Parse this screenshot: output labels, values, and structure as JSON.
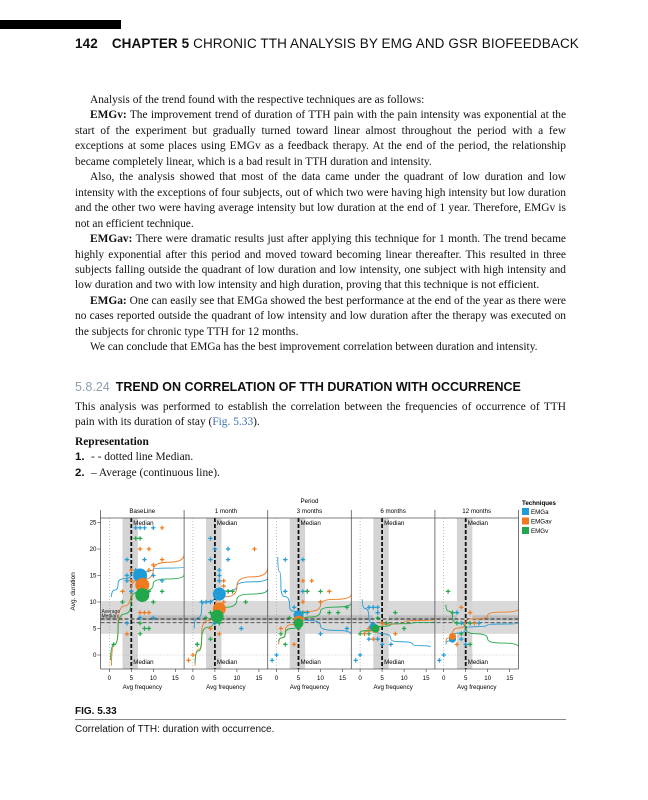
{
  "header": {
    "page_number": "142",
    "chapter": "CHAPTER 5",
    "chapter_title": "CHRONIC TTH ANALYSIS BY EMG AND GSR BIOFEEDBACK"
  },
  "body": {
    "intro": "Analysis of the trend found with the respective techniques are as follows:",
    "emgv_label": "EMGv:",
    "emgv_text": " The improvement trend of duration of TTH pain with the pain intensity was exponential at the start of the experiment but gradually turned toward linear almost throughout the period with a few exceptions at some places using EMGv as a feedback therapy. At the end of the period, the relationship became completely linear, which is a bad result in TTH duration and intensity.",
    "also_text": "Also, the analysis showed that most of the data came under the quadrant of low duration and low intensity with the exceptions of four subjects, out of which two were having high intensity but low duration and the other two were having average intensity but low duration at the end of 1 year. Therefore, EMGv is not an efficient technique.",
    "emgav_label": "EMGav:",
    "emgav_text": " There were dramatic results just after applying this technique for 1 month. The trend became highly exponential after this period and moved toward becoming linear thereafter. This resulted in three subjects falling outside the quadrant of low duration and low intensity, one subject with high intensity and low duration and two with low intensity and high duration, proving that this technique is not efficient.",
    "emga_label": "EMGa:",
    "emga_text": " One can easily see that EMGa showed the best performance at the end of the year as there were no cases reported outside the quadrant of low intensity and low duration after the therapy was executed on the subjects for chronic type TTH for 12 months.",
    "conclusion": "We can conclude that EMGa has the best improvement correlation between duration and intensity."
  },
  "section": {
    "number": "5.8.24",
    "title": "TREND ON CORRELATION OF TTH DURATION WITH OCCURRENCE"
  },
  "section_text_before": "This analysis was performed to establish the correlation between the frequencies of occurrence of TTH pain with its duration of stay (",
  "section_link": "Fig. 5.33",
  "section_text_after": ").",
  "representation": {
    "heading": "Representation",
    "items": [
      {
        "num": "1.",
        "text": "- - dotted line Median."
      },
      {
        "num": "2.",
        "text": "– Average (continuous line)."
      }
    ]
  },
  "figure": {
    "label": "FIG. 5.33",
    "caption": "Correlation of TTH: duration with occurrence."
  },
  "chart_data": {
    "type": "scatter",
    "title": "Period",
    "ylabel": "Avg. duration",
    "xlabel": "Avg frequency",
    "xlim": [
      -2,
      17
    ],
    "ylim": [
      -2.5,
      26
    ],
    "xticks": [
      0,
      5,
      10,
      15
    ],
    "yticks": [
      0,
      5,
      10,
      15,
      20,
      25
    ],
    "median_label": "Median",
    "hline_labels": [
      "Average",
      "Median"
    ],
    "vertical_median": 5,
    "vertical_band": [
      3,
      6.5
    ],
    "horizontal_average": 6.8,
    "horizontal_median": 6.1,
    "horizontal_band": [
      4,
      10.2
    ],
    "horizontal_inner_band": [
      6.5,
      7.5
    ],
    "legend": {
      "title": "Techniques",
      "position": "top-right"
    },
    "series": [
      {
        "name": "EMGa",
        "color": "#1f9bd7"
      },
      {
        "name": "EMGav",
        "color": "#f07a1e"
      },
      {
        "name": "EMGv",
        "color": "#22a74a"
      }
    ],
    "panels": [
      {
        "name": "BaseLine",
        "points": {
          "EMGa": [
            [
              4,
              18
            ],
            [
              4,
              15
            ],
            [
              4,
              14
            ],
            [
              5,
              12
            ],
            [
              6,
              24
            ],
            [
              7,
              24
            ],
            [
              8,
              24
            ],
            [
              10,
              24
            ],
            [
              8,
              18
            ],
            [
              10,
              15
            ],
            [
              12,
              14
            ],
            [
              4,
              6
            ],
            [
              7,
              7
            ],
            [
              10,
              7
            ],
            [
              6,
              16
            ]
          ],
          "EMGav": [
            [
              3,
              12
            ],
            [
              5,
              16
            ],
            [
              7,
              20
            ],
            [
              9,
              20
            ],
            [
              10,
              17
            ],
            [
              12,
              18
            ],
            [
              12,
              24
            ],
            [
              9,
              16
            ],
            [
              4,
              4
            ],
            [
              7,
              8
            ],
            [
              8,
              8
            ],
            [
              9,
              8
            ],
            [
              5,
              14
            ]
          ],
          "EMGv": [
            [
              6,
              22
            ],
            [
              7,
              22
            ],
            [
              8,
              15
            ],
            [
              9,
              12
            ],
            [
              12,
              12
            ],
            [
              3,
              10
            ],
            [
              7,
              6
            ],
            [
              8,
              5
            ],
            [
              9,
              5
            ],
            [
              7,
              4
            ],
            [
              1,
              2
            ],
            [
              10,
              10
            ]
          ]
        },
        "means": {
          "EMGa": [
            7,
            15
          ],
          "EMGav": [
            7.5,
            13.2
          ],
          "EMGv": [
            7.5,
            11.3
          ]
        },
        "trends": {
          "EMGa": [
            [
              0.5,
              11
            ],
            [
              2,
              13.5
            ],
            [
              5,
              15.3
            ],
            [
              10,
              16.2
            ],
            [
              17,
              16.6
            ]
          ],
          "EMGav": [
            [
              0.5,
              -2
            ],
            [
              2,
              6
            ],
            [
              5,
              12.5
            ],
            [
              10,
              16
            ],
            [
              17,
              19
            ]
          ],
          "EMGv": [
            [
              0.3,
              -1
            ],
            [
              2,
              5
            ],
            [
              5,
              10.5
            ],
            [
              10,
              13.5
            ],
            [
              17,
              15.2
            ]
          ]
        }
      },
      {
        "name": "1 month",
        "points": {
          "EMGa": [
            [
              4,
              22
            ],
            [
              4,
              18
            ],
            [
              5,
              20
            ],
            [
              6,
              16
            ],
            [
              6,
              15
            ],
            [
              8,
              20
            ],
            [
              8,
              18
            ],
            [
              6,
              14
            ],
            [
              2,
              10
            ],
            [
              3,
              10
            ],
            [
              4,
              10
            ],
            [
              11,
              5
            ],
            [
              1,
              2
            ],
            [
              5,
              6
            ]
          ],
          "EMGav": [
            [
              7,
              13
            ],
            [
              8,
              12
            ],
            [
              7,
              14
            ],
            [
              14,
              20
            ],
            [
              4,
              5
            ],
            [
              6,
              4
            ],
            [
              -1,
              -1
            ],
            [
              0,
              0
            ],
            [
              7,
              10
            ]
          ],
          "EMGv": [
            [
              4,
              8
            ],
            [
              4,
              3
            ],
            [
              1,
              2
            ],
            [
              8,
              12
            ],
            [
              9,
              12
            ],
            [
              12,
              10
            ],
            [
              6,
              6
            ],
            [
              3,
              7
            ]
          ]
        },
        "means": {
          "EMGa": [
            6,
            11.5
          ],
          "EMGav": [
            6,
            8.7
          ],
          "EMGv": [
            5.5,
            7.3
          ]
        },
        "trends": {
          "EMGa": [
            [
              0.3,
              5
            ],
            [
              2,
              9
            ],
            [
              5,
              11.2
            ],
            [
              10,
              13
            ],
            [
              17,
              14.6
            ]
          ],
          "EMGav": [
            [
              0.5,
              -2
            ],
            [
              2,
              4
            ],
            [
              5,
              9
            ],
            [
              10,
              13
            ],
            [
              17,
              16.5
            ]
          ],
          "EMGv": [
            [
              0.5,
              -1.5
            ],
            [
              2,
              3
            ],
            [
              5,
              7.5
            ],
            [
              10,
              10.5
            ],
            [
              17,
              12.5
            ]
          ]
        }
      },
      {
        "name": "3 months",
        "points": {
          "EMGa": [
            [
              2,
              18
            ],
            [
              6,
              18
            ],
            [
              2,
              12
            ],
            [
              6,
              12
            ],
            [
              10,
              4
            ],
            [
              16,
              5
            ],
            [
              0,
              0
            ],
            [
              -1,
              -1
            ],
            [
              4,
              9
            ],
            [
              7,
              8
            ]
          ],
          "EMGav": [
            [
              6,
              14
            ],
            [
              8,
              14
            ],
            [
              7,
              12
            ],
            [
              6,
              10
            ],
            [
              10,
              10
            ],
            [
              12,
              12
            ],
            [
              1,
              5
            ],
            [
              4,
              2
            ],
            [
              6,
              7
            ]
          ],
          "EMGv": [
            [
              7,
              12
            ],
            [
              10,
              12
            ],
            [
              6,
              8
            ],
            [
              12,
              8
            ],
            [
              14,
              8
            ],
            [
              16,
              9
            ],
            [
              1,
              4
            ],
            [
              2,
              2
            ],
            [
              5,
              5
            ],
            [
              3,
              7
            ]
          ]
        },
        "means": {
          "EMGa": [
            5,
            7.5
          ],
          "EMGav": [
            5,
            6.5
          ],
          "EMGv": [
            5,
            6
          ]
        },
        "trends": {
          "EMGa": [
            [
              0.3,
              18.5
            ],
            [
              1,
              13
            ],
            [
              3,
              9
            ],
            [
              5,
              7.5
            ],
            [
              10,
              5.5
            ],
            [
              17,
              3.8
            ]
          ],
          "EMGav": [
            [
              0.5,
              2
            ],
            [
              2,
              4.5
            ],
            [
              5,
              7
            ],
            [
              10,
              9.5
            ],
            [
              17,
              11.5
            ]
          ],
          "EMGv": [
            [
              0.5,
              2.5
            ],
            [
              2,
              4
            ],
            [
              5,
              6
            ],
            [
              10,
              8.3
            ],
            [
              17,
              9.8
            ]
          ]
        }
      },
      {
        "name": "6 months",
        "points": {
          "EMGa": [
            [
              2,
              9
            ],
            [
              3,
              9
            ],
            [
              4,
              9
            ],
            [
              4,
              8
            ],
            [
              4,
              3
            ],
            [
              5,
              2
            ],
            [
              7,
              2
            ],
            [
              0,
              0
            ],
            [
              -1,
              -1
            ],
            [
              2,
              3
            ]
          ],
          "EMGav": [
            [
              2,
              5
            ],
            [
              3,
              3
            ],
            [
              5,
              6
            ],
            [
              8,
              4
            ],
            [
              1,
              4
            ]
          ],
          "EMGv": [
            [
              6,
              6
            ],
            [
              8,
              8
            ],
            [
              4,
              7
            ],
            [
              0,
              4
            ],
            [
              10,
              5
            ],
            [
              2,
              4
            ]
          ]
        },
        "means": {
          "EMGa": [
            3,
            5.3
          ],
          "EMGav": [
            3.5,
            4.9
          ],
          "EMGv": [
            3.5,
            5
          ]
        },
        "trends": {
          "EMGa": [
            [
              0.5,
              10.5
            ],
            [
              2,
              7
            ],
            [
              3.5,
              5
            ],
            [
              7,
              3
            ],
            [
              12,
              2
            ],
            [
              16,
              1.5
            ]
          ],
          "EMGav": [
            [
              1,
              4
            ],
            [
              3,
              5
            ],
            [
              5,
              5.5
            ],
            [
              10,
              6.2
            ],
            [
              17,
              6.8
            ]
          ],
          "EMGv": [
            [
              0,
              4.2
            ],
            [
              3,
              5
            ],
            [
              7,
              5.8
            ],
            [
              12,
              6
            ],
            [
              17,
              6.3
            ]
          ]
        }
      },
      {
        "name": "12 months",
        "points": {
          "EMGa": [
            [
              4,
              6
            ],
            [
              6,
              6
            ],
            [
              8,
              6
            ],
            [
              4,
              3
            ],
            [
              5,
              2
            ],
            [
              0,
              0
            ],
            [
              -1,
              -1
            ],
            [
              3,
              8
            ]
          ],
          "EMGav": [
            [
              4,
              9
            ],
            [
              2,
              3
            ],
            [
              3,
              2
            ],
            [
              7,
              6
            ],
            [
              6,
              8
            ]
          ],
          "EMGv": [
            [
              1,
              12
            ],
            [
              2,
              8
            ],
            [
              3,
              6
            ],
            [
              6,
              6
            ],
            [
              4,
              4
            ],
            [
              6,
              2
            ]
          ]
        },
        "means": {
          "EMGa": [
            2,
            3
          ],
          "EMGav": [
            2,
            3.5
          ]
        },
        "trends": {
          "EMGa": [
            [
              0.5,
              2
            ],
            [
              2,
              3.3
            ],
            [
              5,
              5
            ],
            [
              10,
              5.7
            ],
            [
              17,
              6
            ]
          ],
          "EMGav": [
            [
              0.5,
              2.5
            ],
            [
              2,
              4
            ],
            [
              5,
              6.2
            ],
            [
              10,
              7.5
            ],
            [
              17,
              8.7
            ]
          ],
          "EMGv": [
            [
              0.5,
              9.5
            ],
            [
              2,
              7
            ],
            [
              5,
              5
            ],
            [
              10,
              3
            ],
            [
              17,
              1.5
            ]
          ]
        }
      }
    ]
  }
}
